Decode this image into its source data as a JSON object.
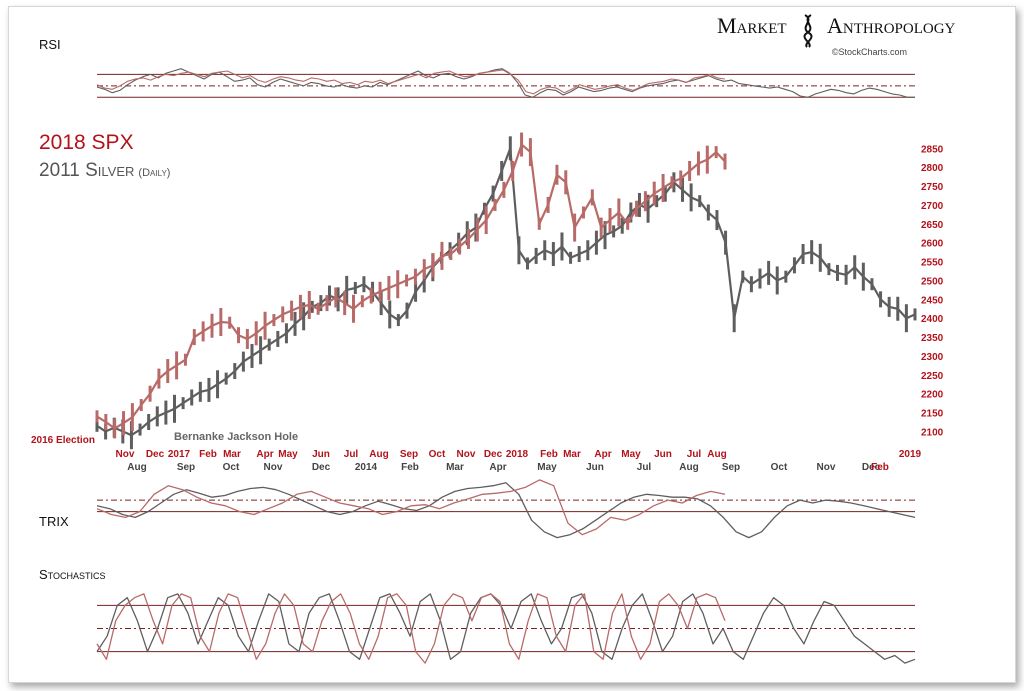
{
  "brand": {
    "title_left": "Market",
    "title_right": "Anthropology",
    "credit": "©StockCharts.com"
  },
  "colors": {
    "spx": "#b86a68",
    "silver": "#5e5e5e",
    "red_label": "#b3121a",
    "dark_label": "#444444",
    "overlap": "#3d0a0a",
    "guide": "#7a2020"
  },
  "chart_data": [
    {
      "type": "line",
      "panel": "rsi",
      "title": "RSI",
      "guides": [
        70,
        50,
        30
      ],
      "ylim": [
        20,
        90
      ],
      "series": [
        {
          "name": "2018 SPX",
          "values": [
            52,
            46,
            44,
            50,
            58,
            62,
            64,
            60,
            66,
            70,
            68,
            72,
            74,
            70,
            66,
            72,
            74,
            76,
            70,
            64,
            68,
            60,
            56,
            62,
            66,
            64,
            60,
            58,
            64,
            62,
            58,
            60,
            54,
            56,
            52,
            58,
            56,
            60,
            54,
            58,
            62,
            66,
            70,
            64,
            72,
            74,
            76,
            70,
            66,
            68,
            72,
            74,
            76,
            78,
            70,
            60,
            40,
            36,
            44,
            48,
            46,
            38,
            44,
            52,
            48,
            44,
            46,
            50,
            52,
            46,
            42,
            48,
            54,
            56,
            58,
            62,
            60,
            56,
            64,
            66,
            70,
            64,
            62
          ]
        },
        {
          "name": "2011 Silver",
          "values": [
            48,
            44,
            38,
            42,
            52,
            60,
            66,
            70,
            64,
            72,
            76,
            80,
            74,
            68,
            62,
            70,
            74,
            66,
            58,
            60,
            64,
            52,
            48,
            56,
            62,
            58,
            54,
            50,
            56,
            54,
            50,
            48,
            52,
            48,
            46,
            50,
            48,
            56,
            52,
            58,
            64,
            70,
            76,
            68,
            64,
            70,
            72,
            66,
            62,
            66,
            72,
            74,
            78,
            80,
            72,
            56,
            34,
            30,
            38,
            44,
            42,
            34,
            40,
            48,
            44,
            40,
            42,
            46,
            48,
            44,
            40,
            46,
            50,
            52,
            54,
            58,
            60,
            56,
            60,
            64,
            68,
            62,
            58,
            60,
            54,
            52,
            50,
            48,
            46,
            48,
            44,
            40,
            32,
            30,
            36,
            40,
            44,
            42,
            38,
            36,
            42,
            46,
            44,
            40,
            36,
            34,
            30,
            30
          ]
        }
      ]
    },
    {
      "type": "line",
      "panel": "price",
      "title": "2018 SPX",
      "subtitle": "2011 Silver",
      "subtitle_note": "(Daily)",
      "ylim": [
        2080,
        2880
      ],
      "y_ticks": [
        2100,
        2150,
        2200,
        2250,
        2300,
        2350,
        2400,
        2450,
        2500,
        2550,
        2600,
        2650,
        2700,
        2750,
        2800,
        2850
      ],
      "x_labels_top": [
        "Nov",
        "Dec",
        "2017",
        "Feb",
        "Mar",
        "Apr",
        "May",
        "Jun",
        "Jul",
        "Aug",
        "Sep",
        "Oct",
        "Nov",
        "Dec",
        "2018",
        "Feb",
        "Mar",
        "Apr",
        "May",
        "Jun",
        "Jul",
        "Aug"
      ],
      "x_labels_bottom": [
        "Aug",
        "Sep",
        "Oct",
        "Nov",
        "Dec",
        "2014",
        "Feb",
        "Mar",
        "Apr",
        "May",
        "Jun",
        "Jul",
        "Aug",
        "Sep",
        "Oct",
        "Nov",
        "Dec",
        "2019",
        "Feb"
      ],
      "annotations": [
        "2016 Election",
        "Bernanke Jackson Hole"
      ],
      "series": [
        {
          "name": "2018 SPX",
          "values": [
            2140,
            2125,
            2108,
            2122,
            2138,
            2170,
            2200,
            2240,
            2260,
            2275,
            2290,
            2350,
            2365,
            2380,
            2390,
            2388,
            2355,
            2345,
            2360,
            2380,
            2395,
            2410,
            2420,
            2430,
            2435,
            2425,
            2440,
            2455,
            2440,
            2425,
            2445,
            2460,
            2470,
            2480,
            2490,
            2500,
            2510,
            2530,
            2540,
            2565,
            2570,
            2590,
            2610,
            2635,
            2660,
            2700,
            2740,
            2790,
            2860,
            2840,
            2650,
            2700,
            2780,
            2760,
            2640,
            2680,
            2720,
            2640,
            2660,
            2680,
            2650,
            2690,
            2710,
            2730,
            2745,
            2760,
            2770,
            2790,
            2810,
            2820,
            2840,
            2815
          ]
        },
        {
          "name": "2011 Silver",
          "values": [
            2115,
            2100,
            2110,
            2100,
            2090,
            2105,
            2125,
            2140,
            2150,
            2160,
            2175,
            2190,
            2205,
            2210,
            2225,
            2240,
            2260,
            2285,
            2300,
            2315,
            2330,
            2345,
            2360,
            2385,
            2405,
            2430,
            2440,
            2460,
            2450,
            2475,
            2480,
            2490,
            2470,
            2440,
            2410,
            2395,
            2420,
            2470,
            2500,
            2535,
            2560,
            2580,
            2600,
            2625,
            2640,
            2690,
            2730,
            2790,
            2850,
            2580,
            2545,
            2565,
            2580,
            2570,
            2590,
            2560,
            2570,
            2580,
            2600,
            2620,
            2630,
            2645,
            2680,
            2700,
            2690,
            2710,
            2730,
            2760,
            2740,
            2720,
            2710,
            2680,
            2660,
            2600,
            2400,
            2510,
            2490,
            2505,
            2520,
            2500,
            2510,
            2540,
            2570,
            2575,
            2560,
            2530,
            2520,
            2515,
            2535,
            2510,
            2490,
            2450,
            2430,
            2425,
            2400,
            2410
          ]
        }
      ]
    },
    {
      "type": "line",
      "panel": "trix",
      "title": "TRIX",
      "guides": [
        0.2,
        0
      ],
      "ylim": [
        -0.7,
        0.6
      ],
      "series": [
        {
          "name": "2018 SPX",
          "values": [
            0.05,
            -0.05,
            -0.1,
            0.0,
            0.3,
            0.45,
            0.38,
            0.25,
            0.15,
            0.1,
            0.0,
            -0.05,
            0.05,
            0.15,
            0.3,
            0.35,
            0.25,
            0.15,
            0.1,
            0.05,
            -0.05,
            0.0,
            0.1,
            0.12,
            0.05,
            0.15,
            0.22,
            0.3,
            0.32,
            0.35,
            0.42,
            0.55,
            0.45,
            -0.2,
            -0.4,
            -0.3,
            -0.1,
            -0.15,
            -0.05,
            0.1,
            0.2,
            0.15,
            0.28,
            0.35,
            0.3
          ]
        },
        {
          "name": "2011 Silver",
          "values": [
            0.1,
            0.05,
            -0.05,
            -0.1,
            0.0,
            0.15,
            0.3,
            0.38,
            0.32,
            0.25,
            0.28,
            0.35,
            0.4,
            0.42,
            0.38,
            0.3,
            0.2,
            0.1,
            0.0,
            -0.05,
            0.0,
            0.1,
            0.18,
            0.12,
            0.05,
            0.02,
            0.1,
            0.25,
            0.35,
            0.4,
            0.42,
            0.45,
            0.5,
            0.3,
            -0.15,
            -0.35,
            -0.45,
            -0.4,
            -0.3,
            -0.15,
            0.0,
            0.15,
            0.25,
            0.3,
            0.28,
            0.25,
            0.25,
            0.22,
            0.1,
            -0.1,
            -0.35,
            -0.45,
            -0.35,
            -0.1,
            0.1,
            0.2,
            0.15,
            0.2,
            0.18,
            0.15,
            0.1,
            0.05,
            0.0,
            -0.05,
            -0.1
          ]
        }
      ]
    },
    {
      "type": "line",
      "panel": "stochastics",
      "title": "Stochastics",
      "guides": [
        80,
        50,
        20
      ],
      "ylim": [
        0,
        100
      ],
      "series": [
        {
          "name": "2018 SPX",
          "values": [
            30,
            10,
            60,
            80,
            90,
            95,
            60,
            30,
            80,
            95,
            90,
            40,
            20,
            70,
            95,
            90,
            50,
            10,
            30,
            70,
            95,
            80,
            30,
            20,
            60,
            85,
            95,
            70,
            30,
            10,
            40,
            90,
            95,
            80,
            20,
            5,
            30,
            80,
            95,
            90,
            60,
            90,
            95,
            85,
            30,
            10,
            60,
            95,
            90,
            40,
            20,
            80,
            95,
            20,
            10,
            70,
            95,
            40,
            10,
            30,
            85,
            95,
            80,
            50,
            90,
            95,
            90,
            60
          ]
        },
        {
          "name": "2011 Silver",
          "values": [
            20,
            40,
            80,
            90,
            60,
            20,
            50,
            90,
            95,
            70,
            30,
            60,
            90,
            80,
            40,
            20,
            60,
            95,
            85,
            30,
            20,
            70,
            90,
            95,
            60,
            20,
            10,
            50,
            90,
            95,
            70,
            40,
            85,
            95,
            60,
            10,
            20,
            70,
            90,
            95,
            80,
            50,
            85,
            95,
            60,
            30,
            50,
            90,
            95,
            70,
            20,
            10,
            50,
            80,
            95,
            60,
            20,
            40,
            85,
            95,
            70,
            30,
            50,
            20,
            10,
            40,
            70,
            90,
            80,
            50,
            30,
            60,
            85,
            80,
            60,
            40,
            30,
            20,
            10,
            15,
            5,
            10
          ]
        }
      ]
    }
  ]
}
